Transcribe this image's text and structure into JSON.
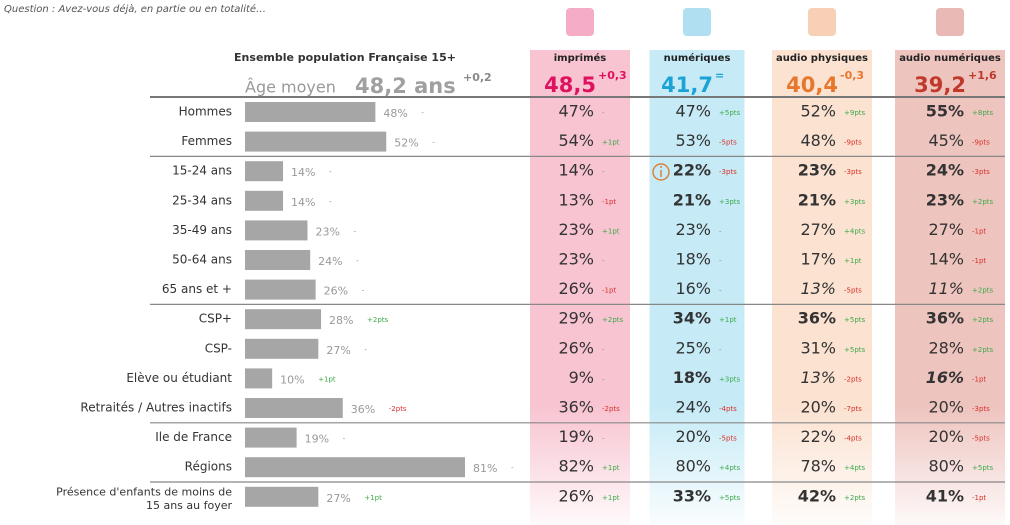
{
  "question": "Question : Avez-vous déjà, en partie ou en totalité…",
  "population": {
    "title": "Ensemble population Française 15+",
    "age_label": "Âge moyen",
    "age_value": "48,2 ans",
    "age_delta": "+0,2",
    "bar_color": "#a6a6a6",
    "max_share": 81
  },
  "delta_colors": {
    "up": "#3daa4a",
    "down": "#d9312b",
    "flat": "#8a8a8a"
  },
  "columns": [
    {
      "label": "imprimés",
      "headline": "48,5",
      "headline_delta": "+0,3",
      "color": "#e0115f",
      "band": "#f8c4d1"
    },
    {
      "label": "numériques",
      "headline": "41,7",
      "headline_delta": "=",
      "color": "#1ba3d6",
      "band": "#c6ebf7"
    },
    {
      "label": "audio physiques",
      "headline": "40,4",
      "headline_delta": "-0,3",
      "color": "#e8772e",
      "band": "#fbe2d1"
    },
    {
      "label": "audio numériques",
      "headline": "39,2",
      "headline_delta": "+1,6",
      "color": "#c0392b",
      "band": "#eec4bf"
    }
  ],
  "groups": [
    [
      {
        "label": "Hommes",
        "share": 48,
        "share_label": "48%",
        "share_delta": "-",
        "cells": [
          {
            "text": "47%",
            "delta": "-"
          },
          {
            "text": "47%",
            "delta": "+5pts"
          },
          {
            "text": "52%",
            "delta": "+9pts"
          },
          {
            "text": "55%",
            "delta": "+8pts",
            "style": "bold"
          }
        ]
      },
      {
        "label": "Femmes",
        "share": 52,
        "share_label": "52%",
        "share_delta": "-",
        "cells": [
          {
            "text": "54%",
            "delta": "+1pt"
          },
          {
            "text": "53%",
            "delta": "-5pts"
          },
          {
            "text": "48%",
            "delta": "-9pts"
          },
          {
            "text": "45%",
            "delta": "-9pts"
          }
        ]
      }
    ],
    [
      {
        "label": "15-24 ans",
        "share": 14,
        "share_label": "14%",
        "share_delta": "-",
        "cells": [
          {
            "text": "14%",
            "delta": "-"
          },
          {
            "text": "22%",
            "delta": "-3pts",
            "style": "bold"
          },
          {
            "text": "23%",
            "delta": "-3pts",
            "style": "bold"
          },
          {
            "text": "24%",
            "delta": "-3pts",
            "style": "bold"
          }
        ]
      },
      {
        "label": "25-34 ans",
        "share": 14,
        "share_label": "14%",
        "share_delta": "-",
        "cells": [
          {
            "text": "13%",
            "delta": "-1pt"
          },
          {
            "text": "21%",
            "delta": "+3pts",
            "style": "bold"
          },
          {
            "text": "21%",
            "delta": "+3pts",
            "style": "bold"
          },
          {
            "text": "23%",
            "delta": "+2pts",
            "style": "bold"
          }
        ]
      },
      {
        "label": "35-49 ans",
        "share": 23,
        "share_label": "23%",
        "share_delta": "-",
        "cells": [
          {
            "text": "23%",
            "delta": "+1pt"
          },
          {
            "text": "23%",
            "delta": "-"
          },
          {
            "text": "27%",
            "delta": "+4pts"
          },
          {
            "text": "27%",
            "delta": "-1pt"
          }
        ]
      },
      {
        "label": "50-64 ans",
        "share": 24,
        "share_label": "24%",
        "share_delta": "-",
        "cells": [
          {
            "text": "23%",
            "delta": "-"
          },
          {
            "text": "18%",
            "delta": "-"
          },
          {
            "text": "17%",
            "delta": "+1pt"
          },
          {
            "text": "14%",
            "delta": "-1pt"
          }
        ]
      },
      {
        "label": "65 ans et +",
        "share": 26,
        "share_label": "26%",
        "share_delta": "-",
        "cells": [
          {
            "text": "26%",
            "delta": "-1pt"
          },
          {
            "text": "16%",
            "delta": "-"
          },
          {
            "text": "13%",
            "delta": "-5pts",
            "style": "italic"
          },
          {
            "text": "11%",
            "delta": "+2pts",
            "style": "italic"
          }
        ]
      }
    ],
    [
      {
        "label": "CSP+",
        "share": 28,
        "share_label": "28%",
        "share_delta": "+2pts",
        "cells": [
          {
            "text": "29%",
            "delta": "+2pts"
          },
          {
            "text": "34%",
            "delta": "+1pt",
            "style": "bold"
          },
          {
            "text": "36%",
            "delta": "+5pts",
            "style": "bold"
          },
          {
            "text": "36%",
            "delta": "+2pts",
            "style": "bold"
          }
        ]
      },
      {
        "label": "CSP-",
        "share": 27,
        "share_label": "27%",
        "share_delta": "-",
        "cells": [
          {
            "text": "26%",
            "delta": "-"
          },
          {
            "text": "25%",
            "delta": "-"
          },
          {
            "text": "31%",
            "delta": "+5pts"
          },
          {
            "text": "28%",
            "delta": "+2pts"
          }
        ]
      },
      {
        "label": "Elève ou étudiant",
        "share": 10,
        "share_label": "10%",
        "share_delta": "+1pt",
        "cells": [
          {
            "text": "9%",
            "delta": "-"
          },
          {
            "text": "18%",
            "delta": "+3pts",
            "style": "bold"
          },
          {
            "text": "13%",
            "delta": "-2pts",
            "style": "italic"
          },
          {
            "text": "16%",
            "delta": "-1pt",
            "style": "bold italic"
          }
        ]
      },
      {
        "label": "Retraités / Autres inactifs",
        "share": 36,
        "share_label": "36%",
        "share_delta": "-2pts",
        "cells": [
          {
            "text": "36%",
            "delta": "-2pts"
          },
          {
            "text": "24%",
            "delta": "-4pts"
          },
          {
            "text": "20%",
            "delta": "-7pts"
          },
          {
            "text": "20%",
            "delta": "-3pts"
          }
        ]
      }
    ],
    [
      {
        "label": "Ile de France",
        "share": 19,
        "share_label": "19%",
        "share_delta": "-",
        "cells": [
          {
            "text": "19%",
            "delta": "-"
          },
          {
            "text": "20%",
            "delta": "-5pts"
          },
          {
            "text": "22%",
            "delta": "-4pts"
          },
          {
            "text": "20%",
            "delta": "-5pts"
          }
        ]
      },
      {
        "label": "Régions",
        "share": 81,
        "share_label": "81%",
        "share_delta": "-",
        "cells": [
          {
            "text": "82%",
            "delta": "+1pt"
          },
          {
            "text": "80%",
            "delta": "+4pts"
          },
          {
            "text": "78%",
            "delta": "+4pts"
          },
          {
            "text": "80%",
            "delta": "+5pts"
          }
        ]
      }
    ],
    [
      {
        "label": "Présence d'enfants de moins de 15 ans au foyer",
        "share": 27,
        "share_label": "27%",
        "share_delta": "+1pt",
        "cells": [
          {
            "text": "26%",
            "delta": "+1pt"
          },
          {
            "text": "33%",
            "delta": "+5pts",
            "style": "bold"
          },
          {
            "text": "42%",
            "delta": "+2pts",
            "style": "bold"
          },
          {
            "text": "41%",
            "delta": "-1pt",
            "style": "bold"
          }
        ]
      }
    ]
  ]
}
